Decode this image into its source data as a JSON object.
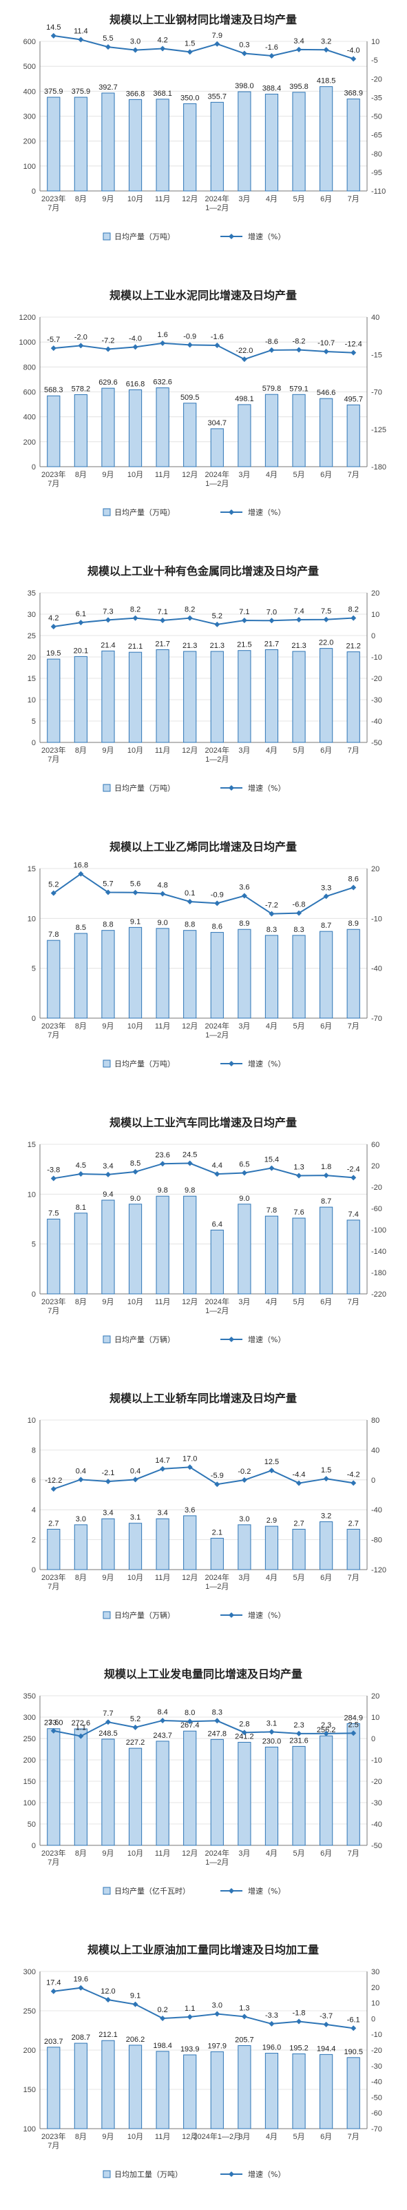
{
  "colors": {
    "bar_fill": "#bdd7ee",
    "bar_stroke": "#2e75b6",
    "line": "#2e75b6",
    "marker": "#2e75b6"
  },
  "chart_data": [
    {
      "type": "bar",
      "title": "规模以上工业钢材同比增速及日均产量",
      "categories": [
        [
          "2023年",
          "7月"
        ],
        [
          "8月"
        ],
        [
          "9月"
        ],
        [
          "10月"
        ],
        [
          "11月"
        ],
        [
          "12月"
        ],
        [
          "2024年",
          "1—2月"
        ],
        [
          "3月"
        ],
        [
          "4月"
        ],
        [
          "5月"
        ],
        [
          "6月"
        ],
        [
          "7月"
        ]
      ],
      "series": [
        {
          "name": "日均产量（万吨）",
          "type": "bar",
          "axis": "left",
          "values": [
            375.9,
            375.9,
            392.7,
            366.8,
            368.1,
            350.0,
            355.7,
            398.0,
            388.4,
            395.8,
            418.5,
            368.9
          ],
          "labels": [
            "375.9",
            "375.9",
            "392.7",
            "366.8",
            "368.1",
            "350.0",
            "355.7",
            "398.0",
            "388.4",
            "395.8",
            "418.5",
            "368.9"
          ]
        },
        {
          "name": "增速（%）",
          "type": "line",
          "axis": "right",
          "values": [
            14.5,
            11.4,
            5.5,
            3.0,
            4.2,
            1.5,
            7.9,
            0.3,
            -1.6,
            3.4,
            3.2,
            -4.0
          ],
          "labels": [
            "14.5",
            "11.4",
            "5.5",
            "3.0",
            "4.2",
            "1.5",
            "7.9",
            "0.3",
            "-1.6",
            "3.4",
            "3.2",
            "-4.0"
          ]
        }
      ],
      "left_axis": {
        "ticks": [
          "0",
          "100",
          "200",
          "300",
          "400",
          "500",
          "600"
        ],
        "range": [
          0,
          600
        ]
      },
      "right_axis": {
        "ticks": [
          "-110",
          "-95",
          "-80",
          "-65",
          "-50",
          "-35",
          "-20",
          "-5",
          "10"
        ],
        "range": [
          -110,
          10
        ]
      }
    },
    {
      "type": "bar",
      "title": "规模以上工业水泥同比增速及日均产量",
      "categories": [
        [
          "2023年",
          "7月"
        ],
        [
          "8月"
        ],
        [
          "9月"
        ],
        [
          "10月"
        ],
        [
          "11月"
        ],
        [
          "12月"
        ],
        [
          "2024年",
          "1—2月"
        ],
        [
          "3月"
        ],
        [
          "4月"
        ],
        [
          "5月"
        ],
        [
          "6月"
        ],
        [
          "7月"
        ]
      ],
      "series": [
        {
          "name": "日均产量（万吨）",
          "type": "bar",
          "axis": "left",
          "values": [
            568.3,
            578.2,
            629.6,
            616.8,
            632.6,
            509.5,
            304.7,
            498.1,
            579.8,
            579.1,
            546.6,
            495.7
          ],
          "labels": [
            "568.3",
            "578.2",
            "629.6",
            "616.8",
            "632.6",
            "509.5",
            "304.7",
            "498.1",
            "579.8",
            "579.1",
            "546.6",
            "495.7"
          ]
        },
        {
          "name": "增速（%）",
          "type": "line",
          "axis": "right",
          "values": [
            -5.7,
            -2.0,
            -7.2,
            -4.0,
            1.6,
            -0.9,
            -1.6,
            -22.0,
            -8.6,
            -8.2,
            -10.7,
            -12.4
          ],
          "labels": [
            "-5.7",
            "-2.0",
            "-7.2",
            "-4.0",
            "1.6",
            "-0.9",
            "-1.6",
            "-22.0",
            "-8.6",
            "-8.2",
            "-10.7",
            "-12.4"
          ]
        }
      ],
      "left_axis": {
        "ticks": [
          "0",
          "200",
          "400",
          "600",
          "800",
          "1000",
          "1200"
        ],
        "range": [
          0,
          1200
        ]
      },
      "right_axis": {
        "ticks": [
          "-180",
          "-125",
          "-70",
          "-15",
          "40"
        ],
        "range": [
          -180,
          40
        ]
      }
    },
    {
      "type": "bar",
      "title": "规模以上工业十种有色金属同比增速及日均产量",
      "categories": [
        [
          "2023年",
          "7月"
        ],
        [
          "8月"
        ],
        [
          "9月"
        ],
        [
          "10月"
        ],
        [
          "11月"
        ],
        [
          "12月"
        ],
        [
          "2024年",
          "1—2月"
        ],
        [
          "3月"
        ],
        [
          "4月"
        ],
        [
          "5月"
        ],
        [
          "6月"
        ],
        [
          "7月"
        ]
      ],
      "series": [
        {
          "name": "日均产量（万吨）",
          "type": "bar",
          "axis": "left",
          "values": [
            19.5,
            20.1,
            21.4,
            21.1,
            21.7,
            21.3,
            21.3,
            21.5,
            21.7,
            21.3,
            22.0,
            21.2
          ],
          "labels": [
            "19.5",
            "20.1",
            "21.4",
            "21.1",
            "21.7",
            "21.3",
            "21.3",
            "21.5",
            "21.7",
            "21.3",
            "22.0",
            "21.2"
          ]
        },
        {
          "name": "增速（%）",
          "type": "line",
          "axis": "right",
          "values": [
            4.2,
            6.1,
            7.3,
            8.2,
            7.1,
            8.2,
            5.2,
            7.1,
            7.0,
            7.4,
            7.5,
            8.2
          ],
          "labels": [
            "4.2",
            "6.1",
            "7.3",
            "8.2",
            "7.1",
            "8.2",
            "5.2",
            "7.1",
            "7.0",
            "7.4",
            "7.5",
            "8.2"
          ]
        }
      ],
      "left_axis": {
        "ticks": [
          "0",
          "5",
          "10",
          "15",
          "20",
          "25",
          "30",
          "35"
        ],
        "range": [
          0,
          35
        ]
      },
      "right_axis": {
        "ticks": [
          "-50",
          "-40",
          "-30",
          "-20",
          "-10",
          "0",
          "10",
          "20"
        ],
        "range": [
          -50,
          20
        ]
      }
    },
    {
      "type": "bar",
      "title": "规模以上工业乙烯同比增速及日均产量",
      "categories": [
        [
          "2023年",
          "7月"
        ],
        [
          "8月"
        ],
        [
          "9月"
        ],
        [
          "10月"
        ],
        [
          "11月"
        ],
        [
          "12月"
        ],
        [
          "2024年",
          "1—2月"
        ],
        [
          "3月"
        ],
        [
          "4月"
        ],
        [
          "5月"
        ],
        [
          "6月"
        ],
        [
          "7月"
        ]
      ],
      "series": [
        {
          "name": "日均产量（万吨）",
          "type": "bar",
          "axis": "left",
          "values": [
            7.8,
            8.5,
            8.8,
            9.1,
            9.0,
            8.8,
            8.6,
            8.9,
            8.3,
            8.3,
            8.7,
            8.9
          ],
          "labels": [
            "7.8",
            "8.5",
            "8.8",
            "9.1",
            "9.0",
            "8.8",
            "8.6",
            "8.9",
            "8.3",
            "8.3",
            "8.7",
            "8.9"
          ]
        },
        {
          "name": "增速（%）",
          "type": "line",
          "axis": "right",
          "values": [
            5.2,
            16.8,
            5.7,
            5.6,
            4.8,
            0.1,
            -0.9,
            3.6,
            -7.2,
            -6.8,
            3.3,
            8.6
          ],
          "labels": [
            "5.2",
            "16.8",
            "5.7",
            "5.6",
            "4.8",
            "0.1",
            "-0.9",
            "3.6",
            "-7.2",
            "-6.8",
            "3.3",
            "8.6"
          ]
        }
      ],
      "left_axis": {
        "ticks": [
          "0",
          "5",
          "10",
          "15"
        ],
        "range": [
          0,
          15
        ]
      },
      "right_axis": {
        "ticks": [
          "-70",
          "-40",
          "-10",
          "20"
        ],
        "range": [
          -70,
          20
        ]
      }
    },
    {
      "type": "bar",
      "title": "规模以上工业汽车同比增速及日均产量",
      "categories": [
        [
          "2023年",
          "7月"
        ],
        [
          "8月"
        ],
        [
          "9月"
        ],
        [
          "10月"
        ],
        [
          "11月"
        ],
        [
          "12月"
        ],
        [
          "2024年",
          "1—2月"
        ],
        [
          "3月"
        ],
        [
          "4月"
        ],
        [
          "5月"
        ],
        [
          "6月"
        ],
        [
          "7月"
        ]
      ],
      "series": [
        {
          "name": "日均产量（万辆）",
          "type": "bar",
          "axis": "left",
          "values": [
            7.5,
            8.1,
            9.4,
            9.0,
            9.8,
            9.8,
            6.4,
            9.0,
            7.8,
            7.6,
            8.7,
            7.4
          ],
          "labels": [
            "7.5",
            "8.1",
            "9.4",
            "9.0",
            "9.8",
            "9.8",
            "6.4",
            "9.0",
            "7.8",
            "7.6",
            "8.7",
            "7.4"
          ]
        },
        {
          "name": "增速（%）",
          "type": "line",
          "axis": "right",
          "values": [
            -3.8,
            4.5,
            3.4,
            8.5,
            23.6,
            24.5,
            4.4,
            6.5,
            15.4,
            1.3,
            1.8,
            -2.4
          ],
          "labels": [
            "-3.8",
            "4.5",
            "3.4",
            "8.5",
            "23.6",
            "24.5",
            "4.4",
            "6.5",
            "15.4",
            "1.3",
            "1.8",
            "-2.4"
          ]
        }
      ],
      "left_axis": {
        "ticks": [
          "0",
          "5",
          "10",
          "15"
        ],
        "range": [
          0,
          15
        ]
      },
      "right_axis": {
        "ticks": [
          "-220",
          "-180",
          "-140",
          "-100",
          "-60",
          "-20",
          "20",
          "60"
        ],
        "range": [
          -220,
          60
        ]
      }
    },
    {
      "type": "bar",
      "title": "规模以上工业轿车同比增速及日均产量",
      "categories": [
        [
          "2023年",
          "7月"
        ],
        [
          "8月"
        ],
        [
          "9月"
        ],
        [
          "10月"
        ],
        [
          "11月"
        ],
        [
          "12月"
        ],
        [
          "2024年",
          "1—2月"
        ],
        [
          "3月"
        ],
        [
          "4月"
        ],
        [
          "5月"
        ],
        [
          "6月"
        ],
        [
          "7月"
        ]
      ],
      "series": [
        {
          "name": "日均产量（万辆）",
          "type": "bar",
          "axis": "left",
          "values": [
            2.7,
            3.0,
            3.4,
            3.1,
            3.4,
            3.6,
            2.1,
            3.0,
            2.9,
            2.7,
            3.2,
            2.7
          ],
          "labels": [
            "2.7",
            "3.0",
            "3.4",
            "3.1",
            "3.4",
            "3.6",
            "2.1",
            "3.0",
            "2.9",
            "2.7",
            "3.2",
            "2.7"
          ]
        },
        {
          "name": "增速（%）",
          "type": "line",
          "axis": "right",
          "values": [
            -12.2,
            0.4,
            -2.1,
            0.4,
            14.7,
            17.0,
            -5.9,
            -0.2,
            12.5,
            -4.4,
            1.5,
            -4.2
          ],
          "labels": [
            "-12.2",
            "0.4",
            "-2.1",
            "0.4",
            "14.7",
            "17.0",
            "-5.9",
            "-0.2",
            "12.5",
            "-4.4",
            "1.5",
            "-4.2"
          ]
        }
      ],
      "left_axis": {
        "ticks": [
          "0",
          "2",
          "4",
          "6",
          "8",
          "10"
        ],
        "range": [
          0,
          10
        ]
      },
      "right_axis": {
        "ticks": [
          "-120",
          "-80",
          "-40",
          "0",
          "40",
          "80"
        ],
        "range": [
          -120,
          80
        ]
      }
    },
    {
      "type": "bar",
      "title": "规模以上工业发电量同比增速及日均产量",
      "categories": [
        [
          "2023年",
          "7月"
        ],
        [
          "8月"
        ],
        [
          "9月"
        ],
        [
          "10月"
        ],
        [
          "11月"
        ],
        [
          "12月"
        ],
        [
          "2024年",
          "1—2月"
        ],
        [
          "3月"
        ],
        [
          "4月"
        ],
        [
          "5月"
        ],
        [
          "6月"
        ],
        [
          "7月"
        ]
      ],
      "series": [
        {
          "name": "日均产量（亿千瓦时）",
          "type": "bar",
          "axis": "left",
          "values": [
            273.0,
            272.6,
            248.5,
            227.2,
            243.7,
            267.4,
            247.8,
            241.2,
            230.0,
            231.6,
            256.2,
            284.9
          ],
          "labels": [
            "273.0",
            "272.6",
            "248.5",
            "227.2",
            "243.7",
            "267.4",
            "247.8",
            "241.2",
            "230.0",
            "231.6",
            "256.2",
            "284.9"
          ]
        },
        {
          "name": "增速（%）",
          "type": "line",
          "axis": "right",
          "values": [
            3.6,
            1.1,
            7.7,
            5.2,
            8.4,
            8.0,
            8.3,
            2.8,
            3.1,
            2.3,
            2.3,
            2.5
          ],
          "labels": [
            "3.6",
            "1.1",
            "7.7",
            "5.2",
            "8.4",
            "8.0",
            "8.3",
            "2.8",
            "3.1",
            "2.3",
            "2.3",
            "2.5"
          ]
        }
      ],
      "left_axis": {
        "ticks": [
          "0",
          "50",
          "100",
          "150",
          "200",
          "250",
          "300",
          "350"
        ],
        "range": [
          0,
          350
        ]
      },
      "right_axis": {
        "ticks": [
          "-50",
          "-40",
          "-30",
          "-20",
          "-10",
          "0",
          "10",
          "20"
        ],
        "range": [
          -50,
          20
        ]
      }
    },
    {
      "type": "bar",
      "title": "规模以上工业原油加工量同比增速及日均加工量",
      "categories": [
        [
          "2023年",
          "7月"
        ],
        [
          "8月"
        ],
        [
          "9月"
        ],
        [
          "10月"
        ],
        [
          "11月"
        ],
        [
          "12月"
        ],
        [
          "2024年1—2月"
        ],
        [
          "3月"
        ],
        [
          "4月"
        ],
        [
          "5月"
        ],
        [
          "6月"
        ],
        [
          "7月"
        ]
      ],
      "series": [
        {
          "name": "日均加工量（万吨）",
          "type": "bar",
          "axis": "left",
          "values": [
            203.7,
            208.7,
            212.1,
            206.2,
            198.4,
            193.9,
            197.9,
            205.7,
            196.0,
            195.2,
            194.4,
            190.5
          ],
          "labels": [
            "203.7",
            "208.7",
            "212.1",
            "206.2",
            "198.4",
            "193.9",
            "197.9",
            "205.7",
            "196.0",
            "195.2",
            "194.4",
            "190.5"
          ]
        },
        {
          "name": "增速（%）",
          "type": "line",
          "axis": "right",
          "values": [
            17.4,
            19.6,
            12.0,
            9.1,
            0.2,
            1.1,
            3.0,
            1.3,
            -3.3,
            -1.8,
            -3.7,
            -6.1
          ],
          "labels": [
            "17.4",
            "19.6",
            "12.0",
            "9.1",
            "0.2",
            "1.1",
            "3.0",
            "1.3",
            "-3.3",
            "-1.8",
            "-3.7",
            "-6.1"
          ]
        }
      ],
      "left_axis": {
        "ticks": [
          "100",
          "150",
          "200",
          "250",
          "300"
        ],
        "range": [
          100,
          300
        ]
      },
      "right_axis": {
        "ticks": [
          "-70",
          "-60",
          "-50",
          "-40",
          "-30",
          "-20",
          "-10",
          "0",
          "10",
          "20",
          "30"
        ],
        "range": [
          -70,
          30
        ]
      }
    }
  ]
}
